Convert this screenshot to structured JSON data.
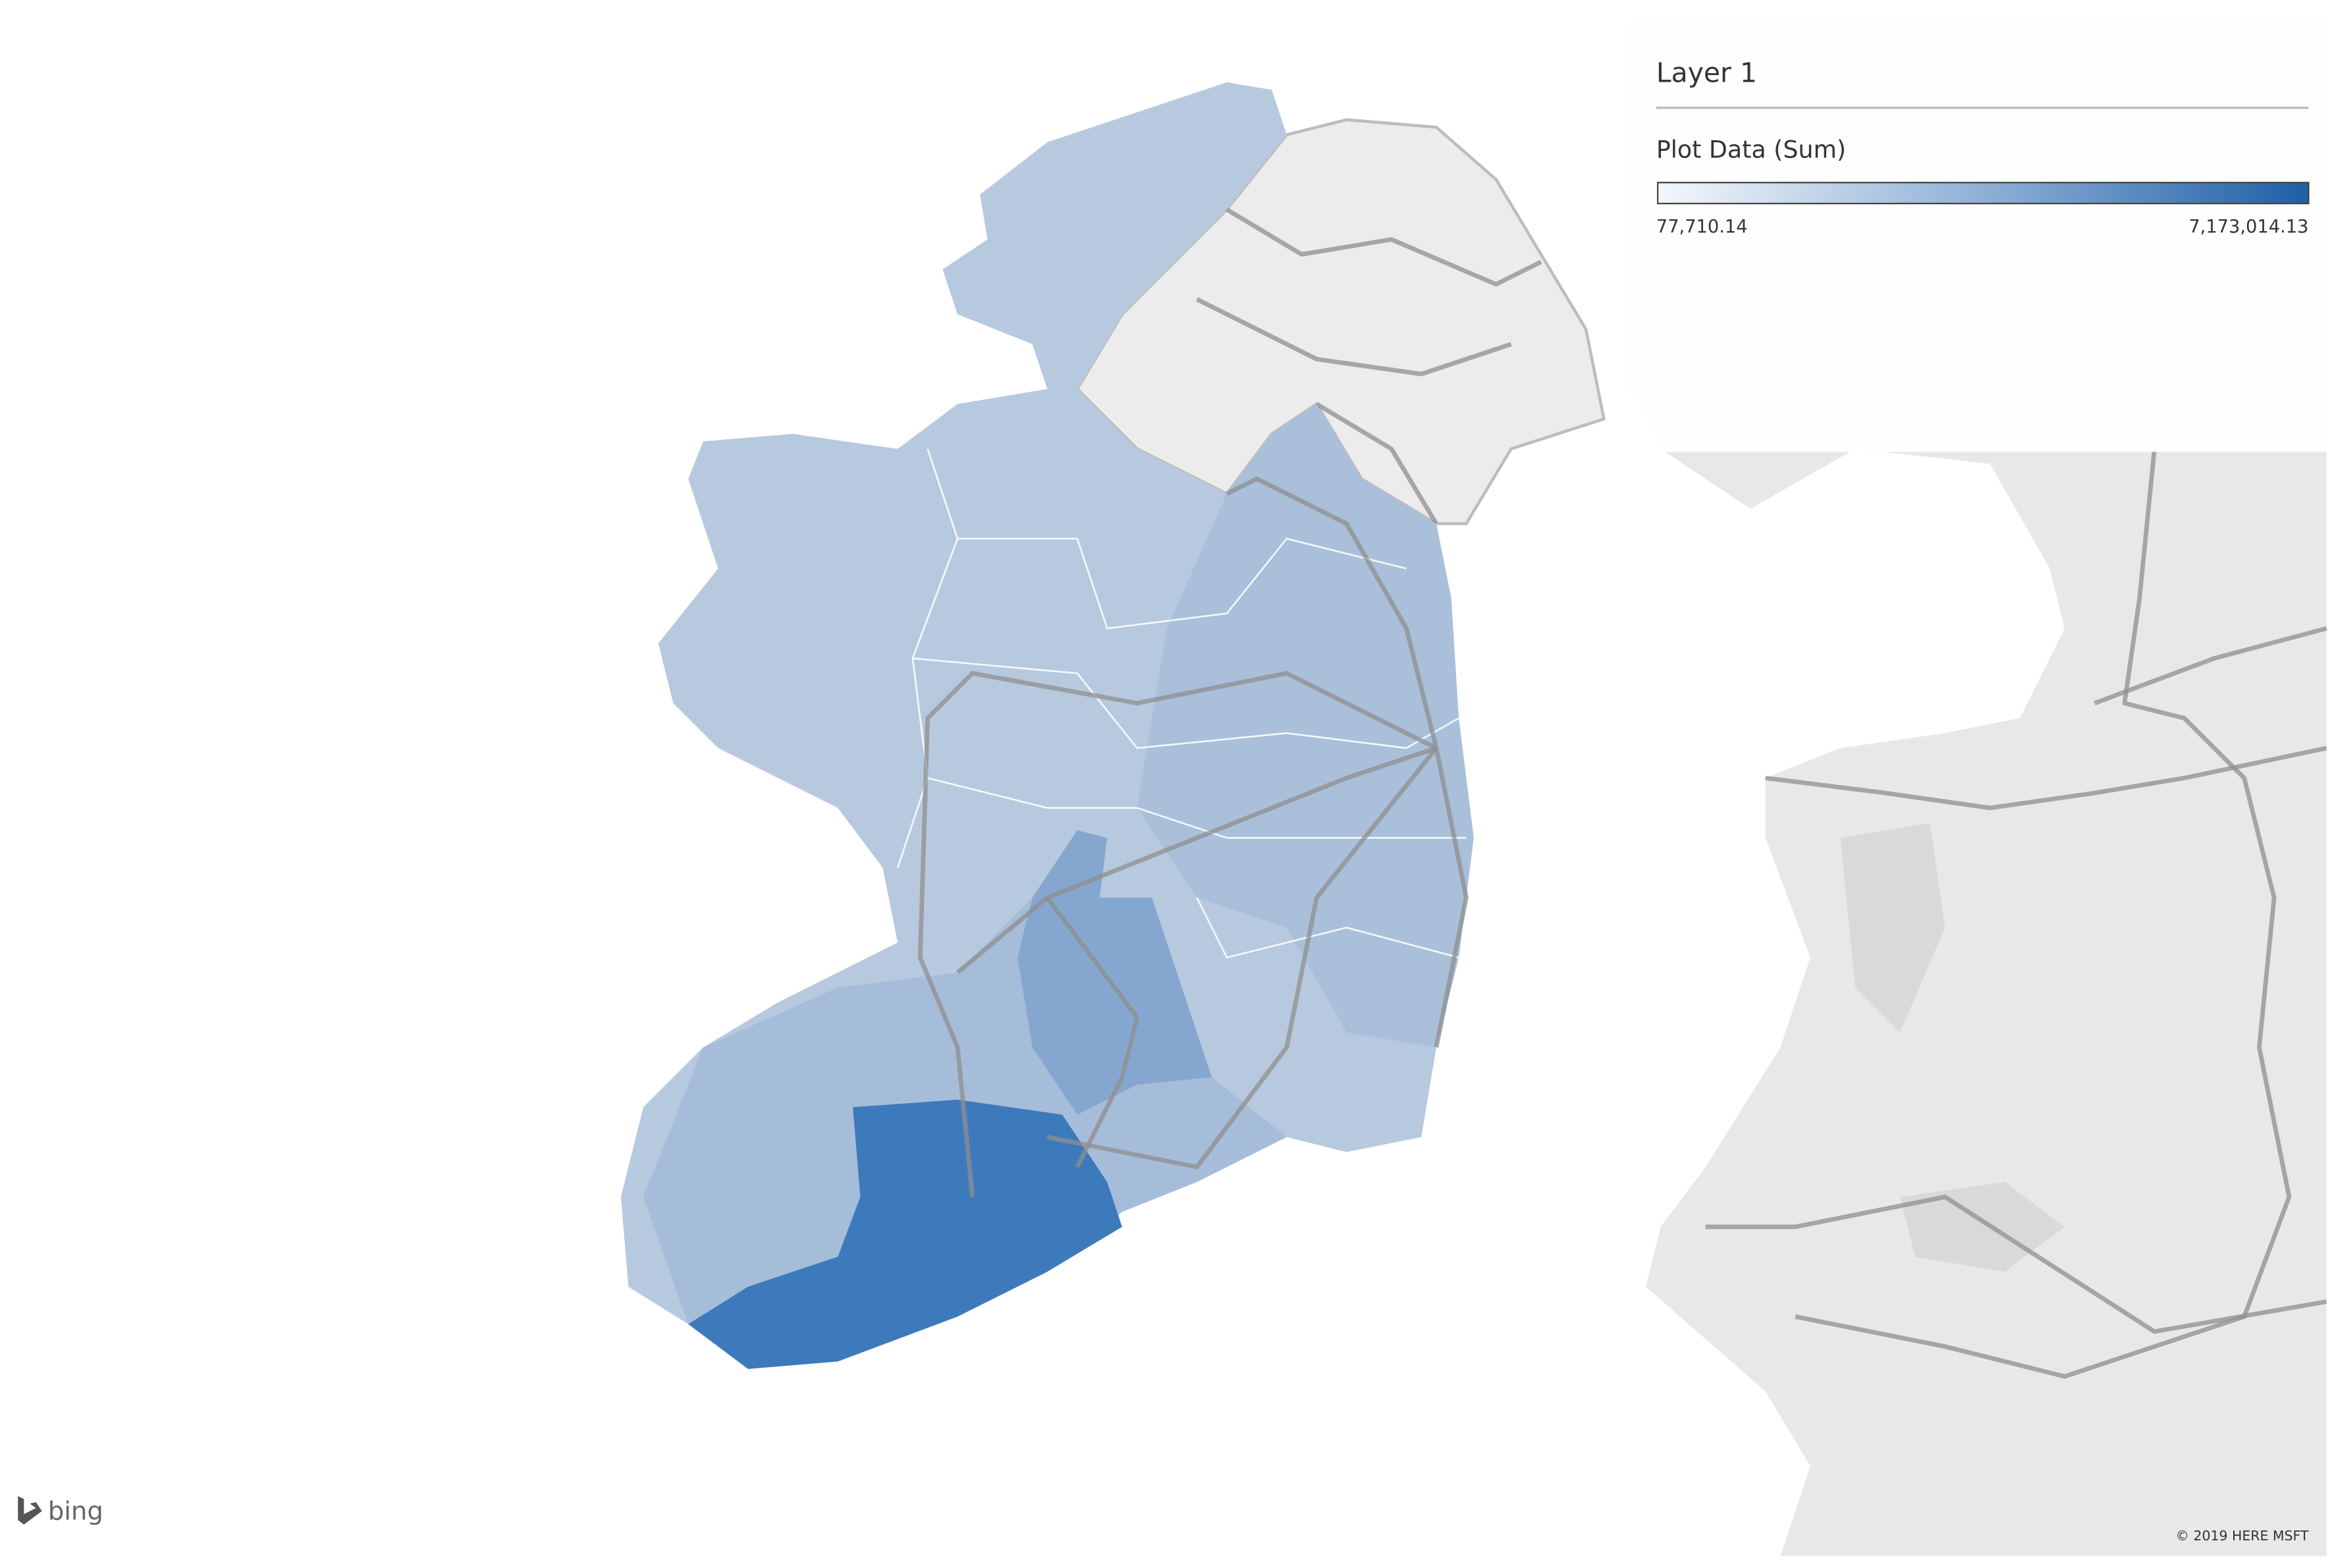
{
  "legend": {
    "title": "Layer 1",
    "field": "Plot Data (Sum)",
    "min_label": "77,710.14",
    "max_label": "7,173,014.13"
  },
  "attribution": {
    "logo": "bing",
    "copyright": "© 2019 HERE MSFT"
  }
}
